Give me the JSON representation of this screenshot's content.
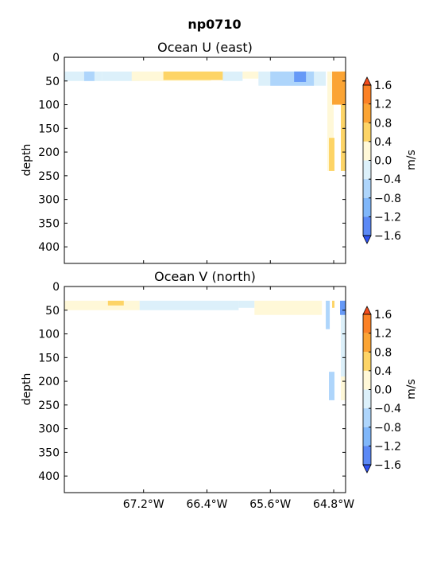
{
  "figure": {
    "title": "np0710"
  },
  "chart_data": [
    {
      "type": "filled-contour",
      "title": "Ocean U (east)",
      "ylabel": "depth",
      "xlabel": "",
      "ylim": [
        435,
        0
      ],
      "y_inverted": true,
      "yticks": [
        "0",
        "50",
        "100",
        "150",
        "200",
        "250",
        "300",
        "350",
        "400"
      ],
      "xlim": [
        -68.2,
        -64.65
      ],
      "xtick_labels_shown": false,
      "regions": [
        {
          "level": "0.0 to -0.4",
          "color": "#dcf0fa",
          "x": [
            -68.2,
            -67.72
          ],
          "depth": [
            30,
            50
          ]
        },
        {
          "level": "-0.4 to -0.8",
          "color": "#aed5fb",
          "x": [
            -67.95,
            -67.82
          ],
          "depth": [
            30,
            50
          ]
        },
        {
          "level": "0.0 to -0.4",
          "color": "#dcf0fa",
          "x": [
            -67.72,
            -67.25
          ],
          "depth": [
            30,
            50
          ]
        },
        {
          "level": "0.0 to 0.4",
          "color": "#fff8d8",
          "x": [
            -67.35,
            -66.35
          ],
          "depth": [
            30,
            50
          ]
        },
        {
          "level": "0.4 to 0.8",
          "color": "#fdd466",
          "x": [
            -66.95,
            -66.2
          ],
          "depth": [
            30,
            48
          ]
        },
        {
          "level": "0.0 to -0.4",
          "color": "#dcf0fa",
          "x": [
            -66.2,
            -65.95
          ],
          "depth": [
            30,
            50
          ]
        },
        {
          "level": "0.0 to 0.4",
          "color": "#fff8d8",
          "x": [
            -65.95,
            -65.75
          ],
          "depth": [
            30,
            45
          ]
        },
        {
          "level": "0.0 to -0.4",
          "color": "#dcf0fa",
          "x": [
            -65.75,
            -64.9
          ],
          "depth": [
            30,
            60
          ]
        },
        {
          "level": "-0.4 to -0.8",
          "color": "#aed5fb",
          "x": [
            -65.6,
            -65.05
          ],
          "depth": [
            30,
            60
          ]
        },
        {
          "level": "-0.8 to -1.2",
          "color": "#6699f7",
          "x": [
            -65.3,
            -65.15
          ],
          "depth": [
            30,
            52
          ]
        },
        {
          "level": "0.0 to 0.4",
          "color": "#fff8d8",
          "x": [
            -64.88,
            -64.8
          ],
          "depth": [
            30,
            240
          ]
        },
        {
          "level": "0.4 to 0.8",
          "color": "#fdd466",
          "x": [
            -64.86,
            -64.79
          ],
          "depth": [
            170,
            240
          ]
        },
        {
          "level": "0.0 to 0.4",
          "color": "#fff8d8",
          "x": [
            -64.71,
            -64.65
          ],
          "depth": [
            30,
            240
          ]
        },
        {
          "level": "0.4 to 0.8",
          "color": "#fdd466",
          "x": [
            -64.71,
            -64.65
          ],
          "depth": [
            30,
            240
          ]
        },
        {
          "level": "0.8 to 1.2",
          "color": "#fba434",
          "x": [
            -64.82,
            -64.65
          ],
          "depth": [
            30,
            100
          ]
        }
      ]
    },
    {
      "type": "filled-contour",
      "title": "Ocean V (north)",
      "ylabel": "depth",
      "xlabel": "",
      "ylim": [
        435,
        0
      ],
      "y_inverted": true,
      "yticks": [
        "0",
        "50",
        "100",
        "150",
        "200",
        "250",
        "300",
        "350",
        "400"
      ],
      "xlim": [
        -68.2,
        -64.65
      ],
      "xticks": [
        -67.2,
        -66.4,
        -65.6,
        -64.8
      ],
      "xtick_labels": [
        "67.2°W",
        "66.4°W",
        "65.6°W",
        "64.8°W"
      ],
      "regions": [
        {
          "level": "0.0 to 0.4",
          "color": "#fff8d8",
          "x": [
            -68.2,
            -67.25
          ],
          "depth": [
            30,
            50
          ]
        },
        {
          "level": "0.4 to 0.8",
          "color": "#fdd466",
          "x": [
            -67.65,
            -67.45
          ],
          "depth": [
            30,
            40
          ]
        },
        {
          "level": "0.0 to -0.4",
          "color": "#dcf0fa",
          "x": [
            -67.25,
            -66.0
          ],
          "depth": [
            30,
            50
          ]
        },
        {
          "level": "0.0 to -0.4",
          "color": "#dcf0fa",
          "x": [
            -66.0,
            -65.8
          ],
          "depth": [
            30,
            45
          ]
        },
        {
          "level": "0.0 to 0.4",
          "color": "#fff8d8",
          "x": [
            -65.8,
            -64.95
          ],
          "depth": [
            30,
            60
          ]
        },
        {
          "level": "-0.4 to -0.8",
          "color": "#aed5fb",
          "x": [
            -64.9,
            -64.85
          ],
          "depth": [
            30,
            90
          ]
        },
        {
          "level": "-0.4 to -0.8",
          "color": "#aed5fb",
          "x": [
            -64.86,
            -64.79
          ],
          "depth": [
            180,
            240
          ]
        },
        {
          "level": "0.0 to -0.4",
          "color": "#dcf0fa",
          "x": [
            -64.71,
            -64.65
          ],
          "depth": [
            30,
            240
          ]
        },
        {
          "level": "0.0 to 0.4",
          "color": "#fff8d8",
          "x": [
            -64.71,
            -64.65
          ],
          "depth": [
            190,
            240
          ]
        },
        {
          "level": "-0.8 to -1.2",
          "color": "#6699f7",
          "x": [
            -64.72,
            -64.65
          ],
          "depth": [
            30,
            60
          ]
        },
        {
          "level": "0.4 to 0.8",
          "color": "#fdd466",
          "x": [
            -64.82,
            -64.79
          ],
          "depth": [
            30,
            45
          ]
        }
      ]
    }
  ],
  "colorbars": [
    {
      "label": "m/s",
      "tick_labels": [
        "1.6",
        "1.2",
        "0.8",
        "0.4",
        "0.0",
        "−0.4",
        "−0.8",
        "−1.2",
        "−1.6"
      ],
      "colors_top_to_bottom": [
        "#f24b1a",
        "#fb8125",
        "#fba434",
        "#fdd466",
        "#fff8d8",
        "#dcf0fa",
        "#aed5fb",
        "#80b7fa",
        "#5b89f5",
        "#2d52f4"
      ],
      "extend": "both"
    },
    {
      "label": "m/s",
      "tick_labels": [
        "1.6",
        "1.2",
        "0.8",
        "0.4",
        "0.0",
        "−0.4",
        "−0.8",
        "−1.2",
        "−1.6"
      ],
      "colors_top_to_bottom": [
        "#f24b1a",
        "#fb8125",
        "#fba434",
        "#fdd466",
        "#fff8d8",
        "#dcf0fa",
        "#aed5fb",
        "#80b7fa",
        "#5b89f5",
        "#2d52f4"
      ],
      "extend": "both"
    }
  ]
}
